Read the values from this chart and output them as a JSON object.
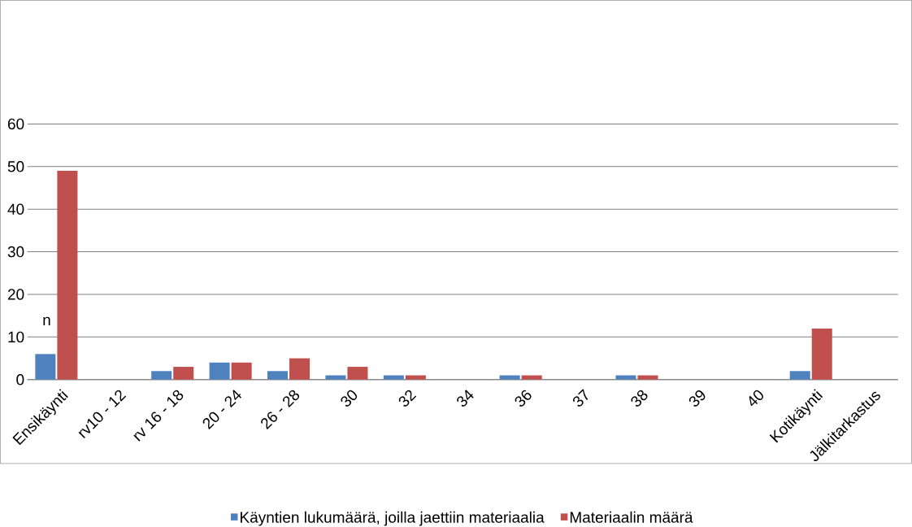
{
  "chart_data": {
    "type": "bar",
    "categories": [
      "Ensikäynti",
      "rv10 - 12",
      "rv 16 - 18",
      "20 - 24",
      "26 - 28",
      "30",
      "32",
      "34",
      "36",
      "37",
      "38",
      "39",
      "40",
      "Kotikäynti",
      "Jälkitarkastus"
    ],
    "series": [
      {
        "name": "Käyntien lukumäärä, joilla jaettiin materiaalia",
        "color": "#4f81bd",
        "values": [
          6,
          0,
          2,
          4,
          2,
          1,
          1,
          0,
          1,
          0,
          1,
          0,
          0,
          2,
          0
        ]
      },
      {
        "name": "Materiaalin määrä",
        "color": "#c0504d",
        "values": [
          49,
          0,
          3,
          4,
          5,
          3,
          1,
          0,
          1,
          0,
          1,
          0,
          0,
          12,
          0
        ]
      }
    ],
    "ylim": [
      0,
      60
    ],
    "yticks": [
      0,
      10,
      20,
      30,
      40,
      50,
      60
    ],
    "grid": "y",
    "legend": "bottom",
    "annotations": [
      "n"
    ]
  }
}
